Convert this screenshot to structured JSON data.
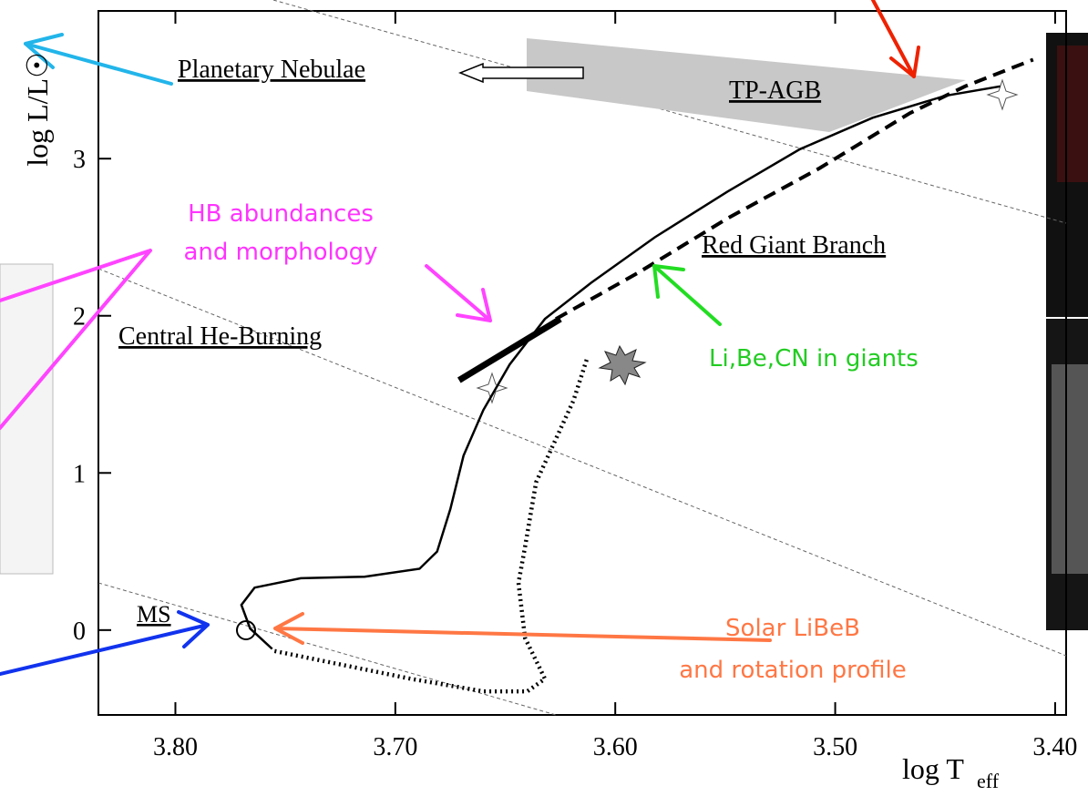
{
  "chart_data": {
    "type": "line",
    "ylabel": "log L/L☉",
    "xlabel": "log T",
    "xlabel_sub": "eff",
    "xlim": [
      3.835,
      3.395
    ],
    "ylim": [
      -0.54,
      3.94
    ],
    "xticks": [
      {
        "value": 3.8,
        "label": "3.80"
      },
      {
        "value": 3.7,
        "label": "3.70"
      },
      {
        "value": 3.6,
        "label": "3.60"
      },
      {
        "value": 3.5,
        "label": "3.50"
      },
      {
        "value": 3.4,
        "label": "3.40"
      }
    ],
    "yticks": [
      0,
      1,
      2,
      3
    ],
    "series": [
      {
        "color": "#000000",
        "style": "solid",
        "x": [
          3.756,
          3.766,
          3.77,
          3.764,
          3.743,
          3.714,
          3.689,
          3.681,
          3.675,
          3.669,
          3.66,
          3.648,
          3.632,
          3.611,
          3.582,
          3.549,
          3.516,
          3.483,
          3.45,
          3.425
        ],
        "y": [
          -0.12,
          0.01,
          0.16,
          0.27,
          0.33,
          0.34,
          0.39,
          0.5,
          0.77,
          1.11,
          1.4,
          1.69,
          1.98,
          2.21,
          2.5,
          2.79,
          3.06,
          3.26,
          3.4,
          3.46
        ]
      },
      {
        "color": "#000000",
        "style": "dashed",
        "x": [
          3.627,
          3.59,
          3.549,
          3.507,
          3.466,
          3.441,
          3.41
        ],
        "y": [
          1.98,
          2.27,
          2.62,
          2.94,
          3.29,
          3.46,
          3.63
        ]
      },
      {
        "color": "#000000",
        "style": "dotted",
        "x": [
          3.613,
          3.619,
          3.636,
          3.641,
          3.644,
          3.641,
          3.632,
          3.64,
          3.66,
          3.693,
          3.756
        ],
        "y": [
          1.72,
          1.46,
          0.94,
          0.53,
          0.3,
          -0.05,
          -0.31,
          -0.39,
          -0.39,
          -0.31,
          -0.13
        ]
      },
      {
        "color": "#000000",
        "style": "thick",
        "x": [
          3.671,
          3.625
        ],
        "y": [
          1.59,
          1.98
        ]
      }
    ],
    "annotations": [
      "Planetary Nebulae",
      "TP-AGB",
      "Red Giant Branch",
      "Central He-Burning",
      "MS",
      "HB abundances",
      "and morphology",
      "Li,Be,CN in giants",
      "Solar LiBeB",
      "and rotation profile"
    ]
  }
}
